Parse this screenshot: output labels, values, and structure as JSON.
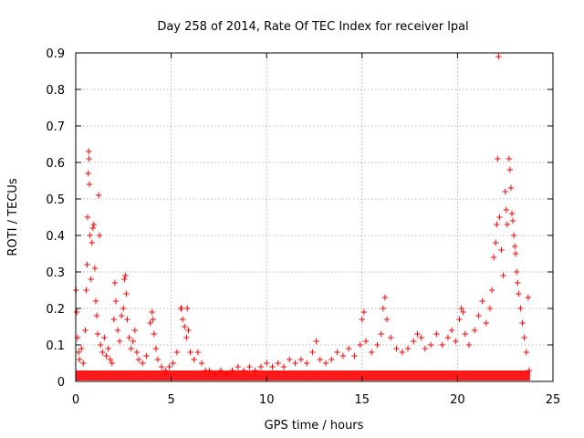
{
  "chart_data": {
    "type": "scatter",
    "title": "Day 258 of 2014, Rate Of TEC Index for receiver lpal",
    "xlabel": "GPS time / hours",
    "ylabel": "ROTI / TECUs",
    "xlim": [
      0,
      25
    ],
    "ylim": [
      0,
      0.9
    ],
    "xticks": [
      0,
      5,
      10,
      15,
      20,
      25
    ],
    "xtick_labels": [
      "0",
      "5",
      "10",
      "15",
      "20",
      "25"
    ],
    "yticks": [
      0,
      0.1,
      0.2,
      0.3,
      0.4,
      0.5,
      0.6,
      0.7,
      0.8,
      0.9
    ],
    "ytick_labels": [
      "0",
      "0.1",
      "0.2",
      "0.3",
      "0.4",
      "0.5",
      "0.6",
      "0.7",
      "0.8",
      "0.9"
    ],
    "grid": true,
    "marker": "+",
    "color": "#ff0000",
    "x_extent": [
      0,
      23.8
    ],
    "points": [
      [
        0.02,
        0.25
      ],
      [
        0.05,
        0.19
      ],
      [
        0.1,
        0.12
      ],
      [
        0.15,
        0.08
      ],
      [
        0.2,
        0.06
      ],
      [
        0.3,
        0.09
      ],
      [
        0.4,
        0.05
      ],
      [
        0.5,
        0.14
      ],
      [
        0.55,
        0.25
      ],
      [
        0.6,
        0.32
      ],
      [
        0.62,
        0.45
      ],
      [
        0.65,
        0.57
      ],
      [
        0.68,
        0.63
      ],
      [
        0.7,
        0.61
      ],
      [
        0.72,
        0.54
      ],
      [
        0.75,
        0.4
      ],
      [
        0.8,
        0.28
      ],
      [
        0.85,
        0.38
      ],
      [
        0.9,
        0.42
      ],
      [
        0.95,
        0.43
      ],
      [
        1.0,
        0.31
      ],
      [
        1.05,
        0.22
      ],
      [
        1.1,
        0.18
      ],
      [
        1.15,
        0.13
      ],
      [
        1.2,
        0.51
      ],
      [
        1.25,
        0.4
      ],
      [
        1.3,
        0.1
      ],
      [
        1.4,
        0.08
      ],
      [
        1.5,
        0.12
      ],
      [
        1.6,
        0.07
      ],
      [
        1.7,
        0.09
      ],
      [
        1.8,
        0.06
      ],
      [
        1.9,
        0.05
      ],
      [
        2.0,
        0.17
      ],
      [
        2.05,
        0.27
      ],
      [
        2.1,
        0.22
      ],
      [
        2.2,
        0.14
      ],
      [
        2.3,
        0.11
      ],
      [
        2.4,
        0.18
      ],
      [
        2.5,
        0.2
      ],
      [
        2.55,
        0.28
      ],
      [
        2.6,
        0.29
      ],
      [
        2.65,
        0.24
      ],
      [
        2.7,
        0.17
      ],
      [
        2.8,
        0.12
      ],
      [
        2.9,
        0.09
      ],
      [
        3.0,
        0.11
      ],
      [
        3.1,
        0.14
      ],
      [
        3.2,
        0.08
      ],
      [
        3.3,
        0.06
      ],
      [
        3.5,
        0.05
      ],
      [
        3.7,
        0.07
      ],
      [
        3.9,
        0.16
      ],
      [
        4.0,
        0.19
      ],
      [
        4.05,
        0.17
      ],
      [
        4.1,
        0.13
      ],
      [
        4.2,
        0.09
      ],
      [
        4.3,
        0.06
      ],
      [
        4.5,
        0.04
      ],
      [
        4.7,
        0.03
      ],
      [
        4.9,
        0.04
      ],
      [
        5.1,
        0.05
      ],
      [
        5.3,
        0.08
      ],
      [
        5.5,
        0.2
      ],
      [
        5.55,
        0.2
      ],
      [
        5.6,
        0.17
      ],
      [
        5.7,
        0.15
      ],
      [
        5.8,
        0.12
      ],
      [
        5.85,
        0.2
      ],
      [
        5.9,
        0.14
      ],
      [
        6.0,
        0.08
      ],
      [
        6.2,
        0.06
      ],
      [
        6.4,
        0.08
      ],
      [
        6.6,
        0.05
      ],
      [
        6.8,
        0.03
      ],
      [
        7.0,
        0.03
      ],
      [
        7.3,
        0.02
      ],
      [
        7.6,
        0.03
      ],
      [
        7.9,
        0.02
      ],
      [
        8.2,
        0.03
      ],
      [
        8.5,
        0.04
      ],
      [
        8.8,
        0.03
      ],
      [
        9.1,
        0.04
      ],
      [
        9.4,
        0.03
      ],
      [
        9.7,
        0.04
      ],
      [
        10.0,
        0.05
      ],
      [
        10.3,
        0.04
      ],
      [
        10.6,
        0.05
      ],
      [
        10.9,
        0.04
      ],
      [
        11.2,
        0.06
      ],
      [
        11.5,
        0.05
      ],
      [
        11.8,
        0.06
      ],
      [
        12.1,
        0.05
      ],
      [
        12.4,
        0.08
      ],
      [
        12.6,
        0.11
      ],
      [
        12.8,
        0.06
      ],
      [
        13.1,
        0.05
      ],
      [
        13.4,
        0.06
      ],
      [
        13.7,
        0.08
      ],
      [
        14.0,
        0.07
      ],
      [
        14.3,
        0.09
      ],
      [
        14.6,
        0.07
      ],
      [
        14.9,
        0.1
      ],
      [
        15.0,
        0.17
      ],
      [
        15.1,
        0.19
      ],
      [
        15.2,
        0.11
      ],
      [
        15.5,
        0.08
      ],
      [
        15.8,
        0.1
      ],
      [
        16.0,
        0.13
      ],
      [
        16.1,
        0.2
      ],
      [
        16.2,
        0.23
      ],
      [
        16.3,
        0.17
      ],
      [
        16.5,
        0.12
      ],
      [
        16.8,
        0.09
      ],
      [
        17.1,
        0.08
      ],
      [
        17.4,
        0.09
      ],
      [
        17.7,
        0.11
      ],
      [
        17.9,
        0.13
      ],
      [
        18.1,
        0.12
      ],
      [
        18.3,
        0.09
      ],
      [
        18.6,
        0.1
      ],
      [
        18.9,
        0.13
      ],
      [
        19.2,
        0.1
      ],
      [
        19.5,
        0.12
      ],
      [
        19.7,
        0.14
      ],
      [
        19.9,
        0.11
      ],
      [
        20.1,
        0.17
      ],
      [
        20.2,
        0.2
      ],
      [
        20.3,
        0.19
      ],
      [
        20.4,
        0.13
      ],
      [
        20.6,
        0.1
      ],
      [
        20.9,
        0.14
      ],
      [
        21.1,
        0.18
      ],
      [
        21.3,
        0.22
      ],
      [
        21.5,
        0.16
      ],
      [
        21.7,
        0.2
      ],
      [
        21.8,
        0.25
      ],
      [
        21.9,
        0.34
      ],
      [
        22.0,
        0.38
      ],
      [
        22.05,
        0.43
      ],
      [
        22.1,
        0.61
      ],
      [
        22.15,
        0.89
      ],
      [
        22.2,
        0.45
      ],
      [
        22.3,
        0.36
      ],
      [
        22.4,
        0.29
      ],
      [
        22.5,
        0.52
      ],
      [
        22.55,
        0.47
      ],
      [
        22.6,
        0.43
      ],
      [
        22.7,
        0.61
      ],
      [
        22.75,
        0.58
      ],
      [
        22.8,
        0.53
      ],
      [
        22.85,
        0.46
      ],
      [
        22.9,
        0.44
      ],
      [
        22.95,
        0.4
      ],
      [
        23.0,
        0.37
      ],
      [
        23.05,
        0.35
      ],
      [
        23.1,
        0.3
      ],
      [
        23.15,
        0.27
      ],
      [
        23.2,
        0.24
      ],
      [
        23.3,
        0.2
      ],
      [
        23.4,
        0.16
      ],
      [
        23.5,
        0.12
      ],
      [
        23.6,
        0.08
      ],
      [
        23.7,
        0.23
      ],
      [
        23.75,
        0.03
      ]
    ]
  }
}
